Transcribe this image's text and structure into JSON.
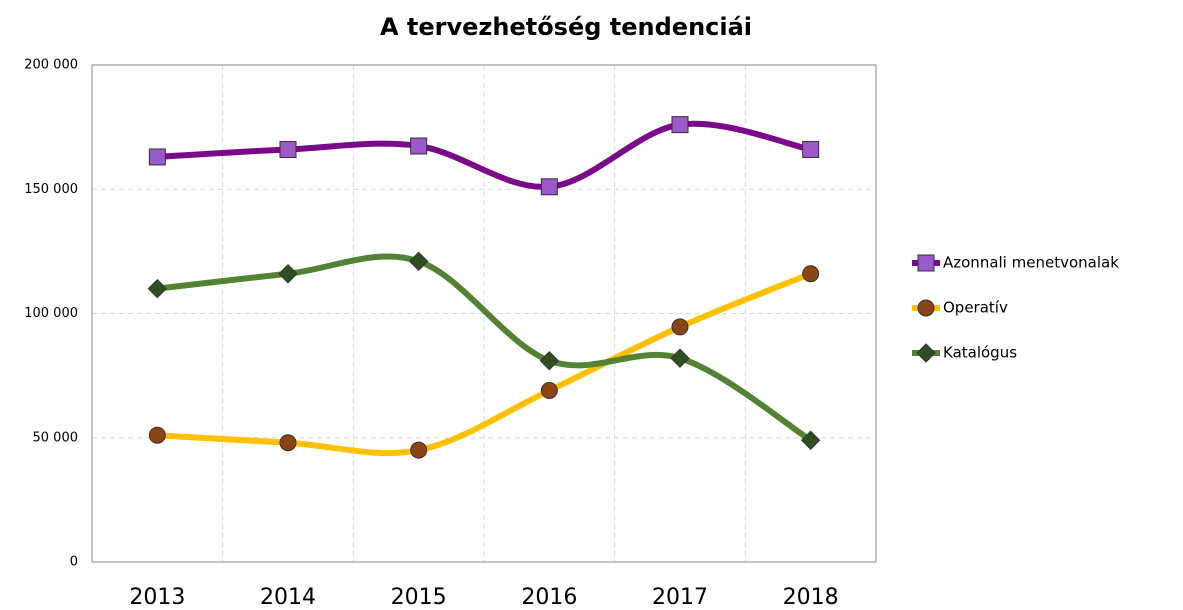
{
  "chart_data": {
    "type": "line",
    "title": "A tervezhetőség tendenciái",
    "categories": [
      "2013",
      "2014",
      "2015",
      "2016",
      "2017",
      "2018"
    ],
    "series": [
      {
        "name": "Azonnali menetvonalak",
        "color": "#7b0a8a",
        "marker": "square",
        "marker_color": "#9b59c9",
        "values": [
          163000,
          166000,
          167400,
          151000,
          176000,
          166000
        ]
      },
      {
        "name": "Operatív",
        "color": "#ffc000",
        "marker": "circle",
        "marker_color": "#8b4513",
        "values": [
          51000,
          48000,
          45000,
          69000,
          94600,
          116000
        ]
      },
      {
        "name": "Katalógus",
        "color": "#548235",
        "marker": "diamond",
        "marker_color": "#2f4f1f",
        "values": [
          110000,
          116000,
          121000,
          81000,
          82000,
          49000
        ]
      }
    ],
    "ylim": [
      0,
      200000
    ],
    "yticks": [
      0,
      {
        "value": 50000,
        "label": "50 000"
      },
      {
        "value": 100000,
        "label": "100 000"
      },
      {
        "value": 150000,
        "label": "150 000"
      },
      {
        "value": 200000,
        "label": "200 000"
      }
    ],
    "grid": true,
    "smooth": true,
    "legend": "right"
  }
}
